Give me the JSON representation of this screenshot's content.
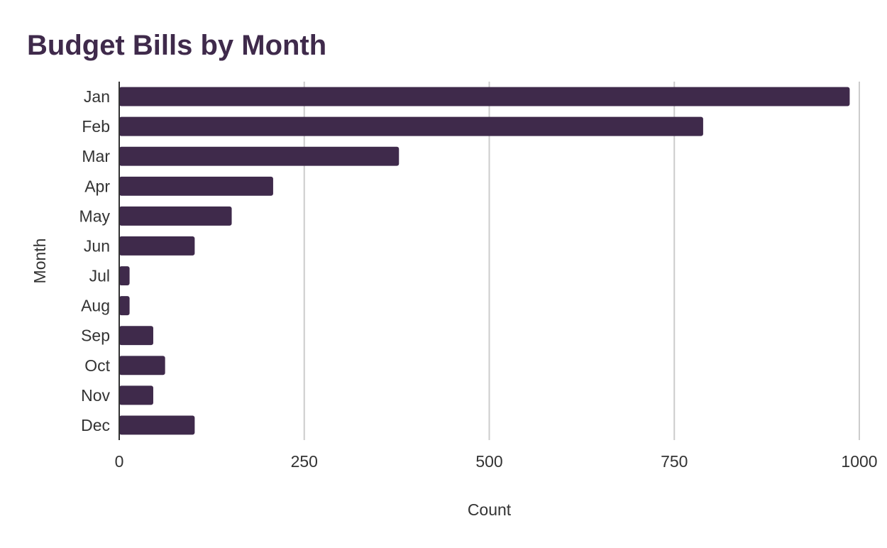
{
  "chart_data": {
    "type": "bar",
    "orientation": "horizontal",
    "title": "Budget Bills by Month",
    "xlabel": "Count",
    "ylabel": "Month",
    "categories": [
      "Jan",
      "Feb",
      "Mar",
      "Apr",
      "May",
      "Jun",
      "Jul",
      "Aug",
      "Sep",
      "Oct",
      "Nov",
      "Dec"
    ],
    "values": [
      987,
      789,
      378,
      208,
      152,
      102,
      14,
      14,
      46,
      62,
      46,
      102
    ],
    "xlim": [
      0,
      1000
    ],
    "xticks": [
      0,
      250,
      500,
      750,
      1000
    ],
    "grid": true,
    "legend": "none",
    "colors": {
      "bar": "#3f2a4b",
      "title": "#3f2a4b",
      "grid": "#cccccc",
      "axis": "#333333"
    }
  }
}
